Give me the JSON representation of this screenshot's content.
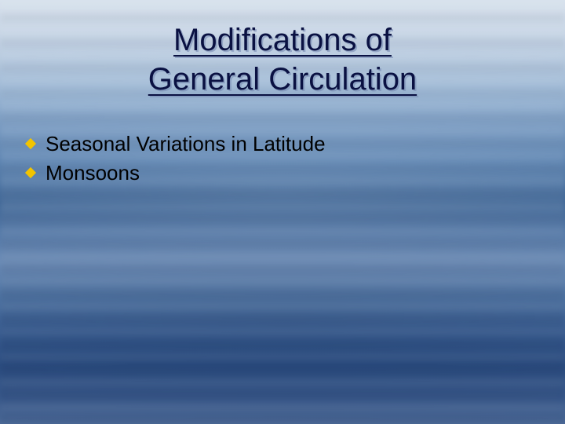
{
  "title": {
    "line1": "Modifications of",
    "line2": "General Circulation",
    "color": "#0a1142",
    "underline_color": "#0a1142",
    "fontsize": 40
  },
  "bullets": {
    "items": [
      {
        "text": "Seasonal Variations in Latitude"
      },
      {
        "text": "Monsoons"
      }
    ],
    "text_color": "#000000",
    "diamond_color": "#f2c400",
    "fontsize": 26
  },
  "background": {
    "top_color": "#d8e2ed",
    "mid_color": "#5a82b0",
    "bottom_color": "#3a5a8c"
  }
}
